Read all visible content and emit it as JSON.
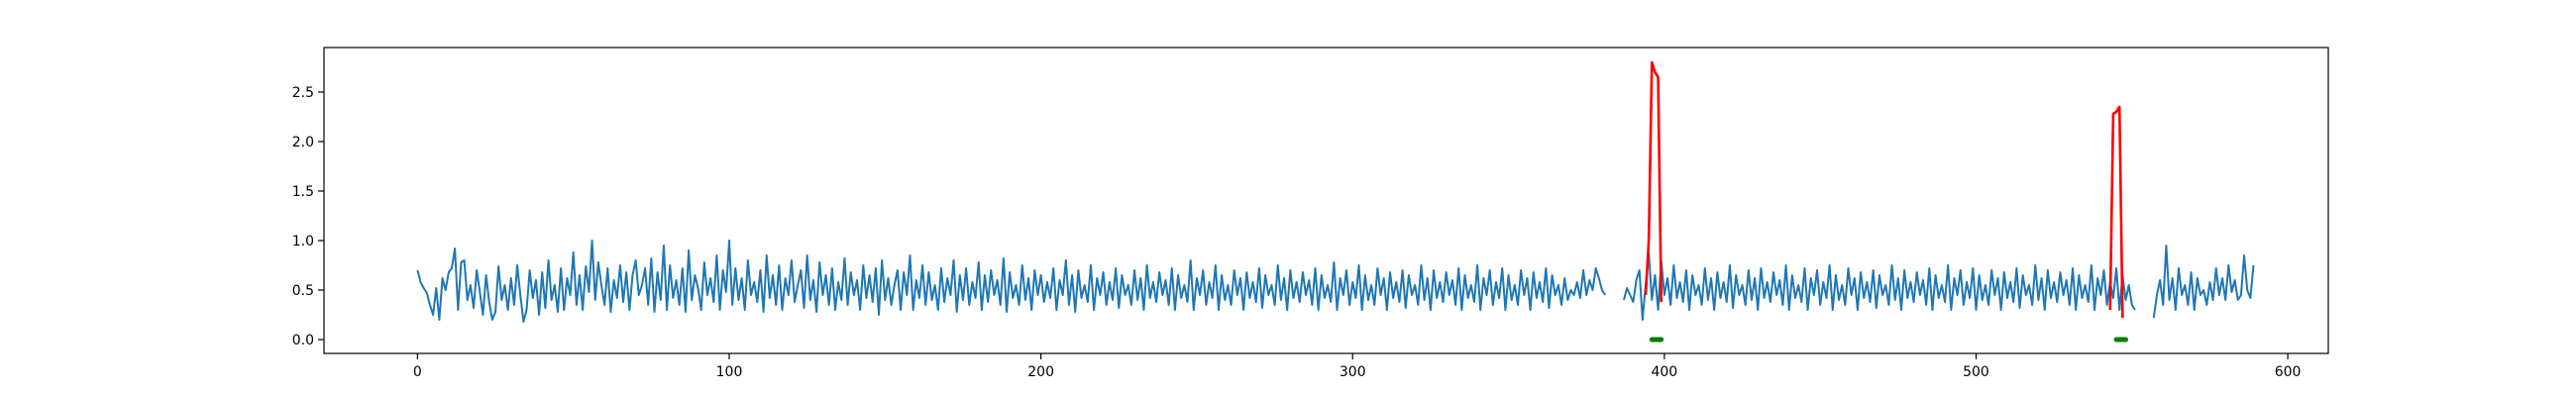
{
  "chart_data": {
    "type": "line",
    "title": "",
    "xlabel": "",
    "ylabel": "",
    "xlim": [
      -30,
      613
    ],
    "ylim": [
      -0.14,
      2.95
    ],
    "xticks": [
      0,
      100,
      200,
      300,
      400,
      500,
      600
    ],
    "yticks": [
      0.0,
      0.5,
      1.0,
      1.5,
      2.0,
      2.5
    ],
    "xtick_labels": [
      "0",
      "100",
      "200",
      "300",
      "400",
      "500",
      "600"
    ],
    "ytick_labels": [
      "0.0",
      "0.5",
      "1.0",
      "1.5",
      "2.0",
      "2.5"
    ],
    "grid": false,
    "colors": {
      "base": "#1f77b4",
      "anomaly": "#ff0000",
      "marker": "#008000"
    },
    "series": [
      {
        "role": "base",
        "x_start": 0,
        "values": [
          0.7,
          0.58,
          0.52,
          0.47,
          0.35,
          0.25,
          0.52,
          0.2,
          0.62,
          0.5,
          0.68,
          0.72,
          0.92,
          0.3,
          0.78,
          0.8,
          0.4,
          0.55,
          0.32,
          0.7,
          0.48,
          0.25,
          0.65,
          0.38,
          0.2,
          0.28,
          0.74,
          0.4,
          0.55,
          0.3,
          0.62,
          0.35,
          0.75,
          0.45,
          0.18,
          0.3,
          0.7,
          0.42,
          0.6,
          0.25,
          0.68,
          0.32,
          0.8,
          0.4,
          0.55,
          0.28,
          0.72,
          0.3,
          0.62,
          0.45,
          0.88,
          0.35,
          0.65,
          0.3,
          0.74,
          0.48,
          1.0,
          0.4,
          0.78,
          0.55,
          0.35,
          0.72,
          0.28,
          0.6,
          0.42,
          0.75,
          0.38,
          0.68,
          0.3,
          0.65,
          0.8,
          0.45,
          0.55,
          0.72,
          0.35,
          0.82,
          0.28,
          0.68,
          0.4,
          0.95,
          0.3,
          0.75,
          0.42,
          0.6,
          0.35,
          0.72,
          0.28,
          0.9,
          0.4,
          0.65,
          0.52,
          0.3,
          0.78,
          0.45,
          0.62,
          0.38,
          0.85,
          0.3,
          0.7,
          0.48,
          1.0,
          0.35,
          0.72,
          0.4,
          0.62,
          0.3,
          0.8,
          0.45,
          0.58,
          0.38,
          0.7,
          0.28,
          0.85,
          0.42,
          0.65,
          0.35,
          0.75,
          0.3,
          0.62,
          0.45,
          0.8,
          0.38,
          0.55,
          0.7,
          0.32,
          0.85,
          0.4,
          0.6,
          0.28,
          0.78,
          0.45,
          0.65,
          0.35,
          0.72,
          0.3,
          0.58,
          0.4,
          0.82,
          0.35,
          0.68,
          0.45,
          0.6,
          0.3,
          0.75,
          0.42,
          0.65,
          0.38,
          0.72,
          0.25,
          0.8,
          0.4,
          0.62,
          0.35,
          0.55,
          0.7,
          0.3,
          0.68,
          0.45,
          0.85,
          0.3,
          0.6,
          0.42,
          0.75,
          0.35,
          0.68,
          0.4,
          0.55,
          0.3,
          0.72,
          0.38,
          0.62,
          0.45,
          0.8,
          0.28,
          0.65,
          0.4,
          0.72,
          0.35,
          0.58,
          0.42,
          0.78,
          0.3,
          0.65,
          0.38,
          0.7,
          0.45,
          0.6,
          0.35,
          0.82,
          0.28,
          0.68,
          0.42,
          0.55,
          0.35,
          0.75,
          0.4,
          0.62,
          0.3,
          0.7,
          0.45,
          0.65,
          0.38,
          0.58,
          0.42,
          0.72,
          0.3,
          0.6,
          0.45,
          0.8,
          0.35,
          0.65,
          0.28,
          0.7,
          0.42,
          0.55,
          0.38,
          0.75,
          0.3,
          0.62,
          0.45,
          0.68,
          0.35,
          0.58,
          0.4,
          0.72,
          0.32,
          0.65,
          0.45,
          0.55,
          0.35,
          0.7,
          0.4,
          0.62,
          0.3,
          0.75,
          0.42,
          0.58,
          0.38,
          0.68,
          0.45,
          0.6,
          0.35,
          0.72,
          0.3,
          0.65,
          0.42,
          0.55,
          0.38,
          0.8,
          0.3,
          0.62,
          0.45,
          0.7,
          0.35,
          0.58,
          0.42,
          0.75,
          0.3,
          0.65,
          0.4,
          0.55,
          0.35,
          0.7,
          0.45,
          0.62,
          0.3,
          0.68,
          0.42,
          0.58,
          0.38,
          0.72,
          0.32,
          0.65,
          0.45,
          0.55,
          0.35,
          0.75,
          0.4,
          0.62,
          0.3,
          0.7,
          0.42,
          0.58,
          0.38,
          0.68,
          0.45,
          0.6,
          0.35,
          0.72,
          0.3,
          0.65,
          0.42,
          0.55,
          0.38,
          0.78,
          0.3,
          0.62,
          0.45,
          0.7,
          0.35,
          0.58,
          0.42,
          0.75,
          0.3,
          0.65,
          0.4,
          0.55,
          0.35,
          0.72,
          0.45,
          0.62,
          0.3,
          0.68,
          0.42,
          0.58,
          0.38,
          0.7,
          0.32,
          0.65,
          0.45,
          0.55,
          0.35,
          0.75,
          0.4,
          0.62,
          0.3,
          0.7,
          0.42,
          0.58,
          0.38,
          0.68,
          0.45,
          0.6,
          0.35,
          0.72,
          0.3,
          0.65,
          0.42,
          0.55,
          0.38,
          0.75,
          0.3,
          0.62,
          0.45,
          0.7,
          0.35,
          0.58,
          0.42,
          0.72,
          0.3,
          0.65,
          0.4,
          0.55,
          0.35,
          0.7,
          0.45,
          0.62,
          0.3,
          0.68,
          0.42,
          0.58,
          0.38,
          0.72,
          0.32,
          0.65,
          0.45,
          0.55,
          0.35,
          0.62,
          0.4,
          0.5,
          0.45,
          0.58,
          0.42,
          0.7,
          0.45,
          0.6,
          0.5,
          0.72,
          0.62,
          0.5,
          0.45,
          null,
          null,
          null,
          null,
          null,
          0.4,
          0.52,
          0.45,
          0.38,
          0.6,
          0.7,
          0.2,
          0.55,
          0.88,
          0.4,
          0.65,
          0.3,
          0.8,
          0.45,
          0.62,
          0.35,
          0.75,
          0.42,
          0.58,
          0.38,
          0.7,
          0.3,
          0.65,
          0.45,
          0.55,
          0.35,
          0.72,
          0.4,
          0.62,
          0.3,
          0.68,
          0.42,
          0.58,
          0.38,
          0.75,
          0.32,
          0.65,
          0.45,
          0.55,
          0.35,
          0.7,
          0.4,
          0.62,
          0.3,
          0.72,
          0.42,
          0.58,
          0.38,
          0.68,
          0.45,
          0.6,
          0.35,
          0.75,
          0.3,
          0.65,
          0.42,
          0.55,
          0.38,
          0.72,
          0.3,
          0.62,
          0.45,
          0.7,
          0.35,
          0.58,
          0.42,
          0.75,
          0.3,
          0.65,
          0.4,
          0.55,
          0.35,
          0.72,
          0.45,
          0.62,
          0.3,
          0.68,
          0.42,
          0.58,
          0.38,
          0.7,
          0.32,
          0.65,
          0.45,
          0.55,
          0.35,
          0.75,
          0.4,
          0.62,
          0.3,
          0.7,
          0.42,
          0.58,
          0.38,
          0.68,
          0.45,
          0.6,
          0.35,
          0.72,
          0.3,
          0.65,
          0.42,
          0.55,
          0.38,
          0.75,
          0.3,
          0.62,
          0.45,
          0.7,
          0.35,
          0.58,
          0.42,
          0.72,
          0.3,
          0.65,
          0.4,
          0.55,
          0.35,
          0.7,
          0.45,
          0.62,
          0.3,
          0.68,
          0.42,
          0.58,
          0.38,
          0.72,
          0.32,
          0.65,
          0.45,
          0.55,
          0.35,
          0.75,
          0.4,
          0.62,
          0.3,
          0.7,
          0.42,
          0.58,
          0.38,
          0.68,
          0.45,
          0.6,
          0.35,
          0.72,
          0.3,
          0.65,
          0.42,
          0.55,
          0.38,
          0.75,
          0.3,
          0.62,
          0.45,
          0.7,
          0.35,
          0.58,
          0.42,
          0.72,
          0.3,
          0.65,
          0.4,
          0.55,
          0.35,
          0.3,
          null,
          null,
          null,
          null,
          null,
          0.22,
          0.45,
          0.6,
          0.35,
          0.95,
          0.4,
          0.62,
          0.3,
          0.72,
          0.45,
          0.55,
          0.35,
          0.68,
          0.3,
          0.62,
          0.45,
          0.5,
          0.35,
          0.58,
          0.4,
          0.72,
          0.45,
          0.62,
          0.4,
          0.75,
          0.48,
          0.6,
          0.4,
          0.45,
          0.85,
          0.5,
          0.42,
          0.75
        ]
      },
      {
        "role": "anomaly",
        "x_start": 394,
        "values": [
          0.45,
          1.0,
          2.8,
          2.7,
          2.65,
          0.38
        ]
      },
      {
        "role": "anomaly",
        "x_start": 543,
        "values": [
          0.3,
          2.28,
          2.3,
          2.35,
          0.22
        ]
      }
    ],
    "markers": [
      {
        "x0": 396,
        "x1": 399,
        "y": 0.0
      },
      {
        "x0": 545,
        "x1": 548,
        "y": 0.0
      }
    ]
  }
}
